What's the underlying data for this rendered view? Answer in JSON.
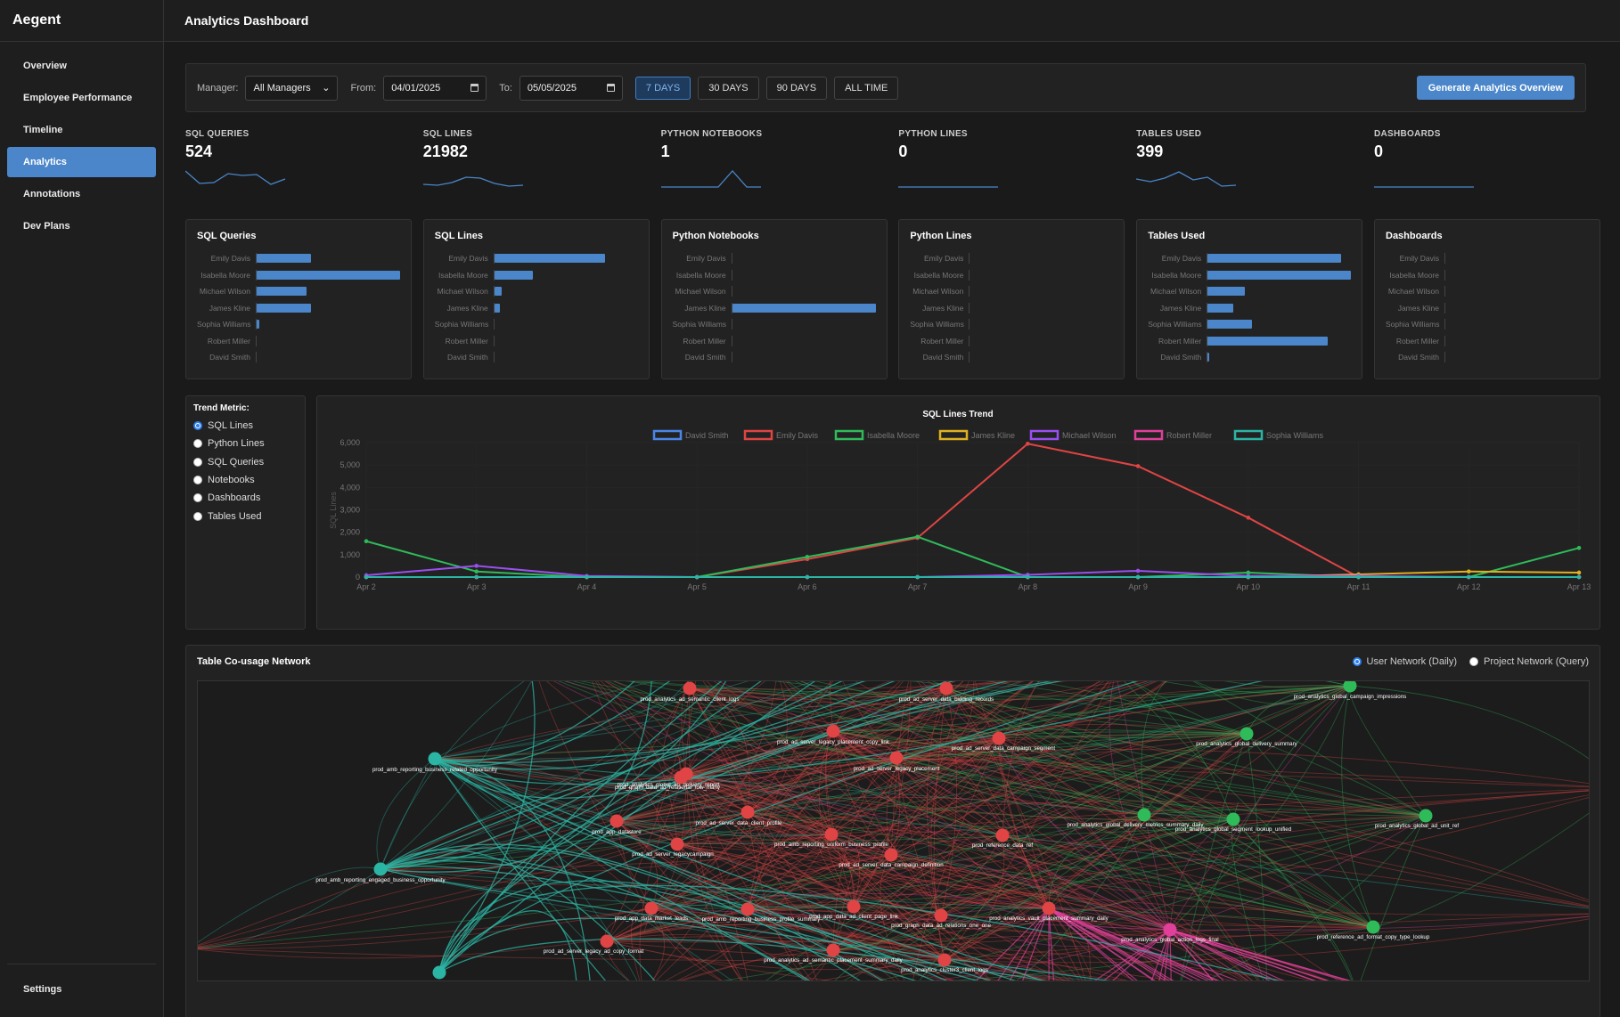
{
  "app": {
    "brand": "Aegent",
    "page_title": "Analytics Dashboard"
  },
  "sidebar": {
    "items": [
      {
        "label": "Overview",
        "active": false
      },
      {
        "label": "Employee Performance",
        "active": false
      },
      {
        "label": "Timeline",
        "active": false
      },
      {
        "label": "Analytics",
        "active": true
      },
      {
        "label": "Annotations",
        "active": false
      },
      {
        "label": "Dev Plans",
        "active": false
      }
    ],
    "settings_label": "Settings"
  },
  "filters": {
    "manager_label": "Manager:",
    "manager_value": "All Managers",
    "from_label": "From:",
    "from_value": "04/01/2025",
    "to_label": "To:",
    "to_value": "05/05/2025",
    "ranges": [
      "7 DAYS",
      "30 DAYS",
      "90 DAYS",
      "ALL TIME"
    ],
    "active_range": "7 DAYS",
    "generate_label": "Generate Analytics Overview"
  },
  "kpis": [
    {
      "label": "SQL QUERIES",
      "value": "524",
      "spark": [
        0.9,
        0.2,
        0.25,
        0.75,
        0.65,
        0.7,
        0.15,
        0.45
      ]
    },
    {
      "label": "SQL LINES",
      "value": "21982",
      "spark": [
        0.15,
        0.1,
        0.25,
        0.55,
        0.5,
        0.2,
        0.05,
        0.1
      ]
    },
    {
      "label": "PYTHON NOTEBOOKS",
      "value": "1",
      "spark": [
        0,
        0,
        0,
        0,
        0,
        0.9,
        0,
        0
      ]
    },
    {
      "label": "PYTHON LINES",
      "value": "0",
      "spark": [
        0,
        0,
        0,
        0,
        0,
        0,
        0,
        0
      ]
    },
    {
      "label": "TABLES USED",
      "value": "399",
      "spark": [
        0.45,
        0.3,
        0.5,
        0.85,
        0.4,
        0.55,
        0.05,
        0.1
      ]
    },
    {
      "label": "DASHBOARDS",
      "value": "0",
      "spark": [
        0,
        0,
        0,
        0,
        0,
        0,
        0,
        0
      ]
    }
  ],
  "bar_cards": [
    {
      "title": "SQL Queries",
      "max": 100,
      "rows": [
        {
          "name": "Emily Davis",
          "value": 38
        },
        {
          "name": "Isabella Moore",
          "value": 100
        },
        {
          "name": "Michael Wilson",
          "value": 35
        },
        {
          "name": "James Kline",
          "value": 38
        },
        {
          "name": "Sophia Williams",
          "value": 2
        },
        {
          "name": "Robert Miller",
          "value": 0
        },
        {
          "name": "David Smith",
          "value": 0
        }
      ]
    },
    {
      "title": "SQL Lines",
      "max": 100,
      "rows": [
        {
          "name": "Emily Davis",
          "value": 77
        },
        {
          "name": "Isabella Moore",
          "value": 27
        },
        {
          "name": "Michael Wilson",
          "value": 5
        },
        {
          "name": "James Kline",
          "value": 4
        },
        {
          "name": "Sophia Williams",
          "value": 0
        },
        {
          "name": "Robert Miller",
          "value": 0
        },
        {
          "name": "David Smith",
          "value": 0
        }
      ]
    },
    {
      "title": "Python Notebooks",
      "max": 100,
      "rows": [
        {
          "name": "Emily Davis",
          "value": 0
        },
        {
          "name": "Isabella Moore",
          "value": 0
        },
        {
          "name": "Michael Wilson",
          "value": 0
        },
        {
          "name": "James Kline",
          "value": 100
        },
        {
          "name": "Sophia Williams",
          "value": 0
        },
        {
          "name": "Robert Miller",
          "value": 0
        },
        {
          "name": "David Smith",
          "value": 0
        }
      ]
    },
    {
      "title": "Python Lines",
      "max": 100,
      "rows": [
        {
          "name": "Emily Davis",
          "value": 0
        },
        {
          "name": "Isabella Moore",
          "value": 0
        },
        {
          "name": "Michael Wilson",
          "value": 0
        },
        {
          "name": "James Kline",
          "value": 0
        },
        {
          "name": "Sophia Williams",
          "value": 0
        },
        {
          "name": "Robert Miller",
          "value": 0
        },
        {
          "name": "David Smith",
          "value": 0
        }
      ]
    },
    {
      "title": "Tables Used",
      "max": 100,
      "rows": [
        {
          "name": "Emily Davis",
          "value": 93
        },
        {
          "name": "Isabella Moore",
          "value": 100
        },
        {
          "name": "Michael Wilson",
          "value": 26
        },
        {
          "name": "James Kline",
          "value": 18
        },
        {
          "name": "Sophia Williams",
          "value": 31
        },
        {
          "name": "Robert Miller",
          "value": 84
        },
        {
          "name": "David Smith",
          "value": 1
        }
      ]
    },
    {
      "title": "Dashboards",
      "max": 100,
      "rows": [
        {
          "name": "Emily Davis",
          "value": 0
        },
        {
          "name": "Isabella Moore",
          "value": 0
        },
        {
          "name": "Michael Wilson",
          "value": 0
        },
        {
          "name": "James Kline",
          "value": 0
        },
        {
          "name": "Sophia Williams",
          "value": 0
        },
        {
          "name": "Robert Miller",
          "value": 0
        },
        {
          "name": "David Smith",
          "value": 0
        }
      ]
    }
  ],
  "trend_metric": {
    "title": "Trend Metric:",
    "options": [
      "SQL Lines",
      "Python Lines",
      "SQL Queries",
      "Notebooks",
      "Dashboards",
      "Tables Used"
    ],
    "selected": "SQL Lines"
  },
  "network": {
    "title": "Table Co-usage Network",
    "modes": [
      "User Network (Daily)",
      "Project Network (Query)"
    ],
    "selected_mode": "User Network (Daily)",
    "colors": {
      "teal": "#2bb5a4",
      "red": "#e04444",
      "green": "#2fbb5a",
      "pink": "#e0409a"
    },
    "nodes": [
      {
        "label": "prod_analytics_ad_semantic_client_logs",
        "group": "red"
      },
      {
        "label": "prod_ad_server_data_bidding_records",
        "group": "red"
      },
      {
        "label": "prod_analytics_global_campaign_impressions",
        "group": "green"
      },
      {
        "label": "prod_ad_server_legacy_placement_copy_link",
        "group": "red"
      },
      {
        "label": "prod_analytics_global_ad_delivery_report",
        "group": "red"
      },
      {
        "label": "prod_ad_server_legacy_placement",
        "group": "red"
      },
      {
        "label": "prod_ad_server_data_campaign_segment",
        "group": "red"
      },
      {
        "label": "prod_analytics_global_delivery_summary",
        "group": "green"
      },
      {
        "label": "prod_amb_reporting_business_related_opportunity",
        "group": "teal"
      },
      {
        "label": "prod_graph_data_ad_relational_row_many",
        "group": "red"
      },
      {
        "label": "prod_ad_server_data_client_profile",
        "group": "red"
      },
      {
        "label": "prod_app_datastore",
        "group": "red"
      },
      {
        "label": "prod_analytics_global_delivery_metrics_summary_daily",
        "group": "green"
      },
      {
        "label": "prod_analytics_global_segment_lookup_unified",
        "group": "green"
      },
      {
        "label": "prod_analytics_global_ad_unit_ref",
        "group": "green"
      },
      {
        "label": "prod_amb_reporting_uniform_business_profile",
        "group": "red"
      },
      {
        "label": "prod_reference_data_ref",
        "group": "red"
      },
      {
        "label": "prod_ad_server_legacycampaign",
        "group": "red"
      },
      {
        "label": "prod_ad_server_data_campaign_definition",
        "group": "red"
      },
      {
        "label": "prod_amb_reporting_engaged_business_opportunity",
        "group": "teal"
      },
      {
        "label": "prod_app_data_market_leads",
        "group": "red"
      },
      {
        "label": "prod_amb_reporting_business_profile_summary",
        "group": "red"
      },
      {
        "label": "prod_app_data_ad_client_page_link",
        "group": "red"
      },
      {
        "label": "prod_analytics_vault_placement_summary_daily",
        "group": "red"
      },
      {
        "label": "prod_graph_data_ad_relations_one_one",
        "group": "red"
      },
      {
        "label": "prod_analytics_global_action_logs_final",
        "group": "pink"
      },
      {
        "label": "prod_reference_ad_format_copy_type_lookup",
        "group": "green"
      },
      {
        "label": "prod_ad_server_legacy_ad_copy_format",
        "group": "red"
      },
      {
        "label": "prod_analytics_ad_semantic_placement_summary_daily",
        "group": "red"
      },
      {
        "label": "prod_analytics_cluster3_client_logs",
        "group": "red"
      }
    ]
  },
  "chart_data": {
    "type": "line",
    "title": "SQL Lines Trend",
    "xlabel": "",
    "ylabel": "SQL Lines",
    "categories": [
      "Apr 2",
      "Apr 3",
      "Apr 4",
      "Apr 5",
      "Apr 6",
      "Apr 7",
      "Apr 8",
      "Apr 9",
      "Apr 10",
      "Apr 11",
      "Apr 12",
      "Apr 13"
    ],
    "ylim": [
      0,
      6000
    ],
    "yticks": [
      0,
      1000,
      2000,
      3000,
      4000,
      5000,
      6000
    ],
    "ytick_labels": [
      "0",
      "1,000",
      "2,000",
      "3,000",
      "4,000",
      "5,000",
      "6,000"
    ],
    "series": [
      {
        "name": "David Smith",
        "color": "#4a86e8",
        "values": [
          0,
          0,
          0,
          0,
          0,
          0,
          0,
          0,
          0,
          0,
          0,
          0
        ]
      },
      {
        "name": "Emily Davis",
        "color": "#e04444",
        "values": [
          0,
          0,
          0,
          0,
          800,
          1750,
          5950,
          4950,
          2650,
          0,
          0,
          0
        ]
      },
      {
        "name": "Isabella Moore",
        "color": "#2fbb5a",
        "values": [
          1600,
          250,
          0,
          0,
          900,
          1800,
          0,
          0,
          200,
          0,
          0,
          1300
        ]
      },
      {
        "name": "James Kline",
        "color": "#e0b020",
        "values": [
          0,
          0,
          0,
          0,
          0,
          0,
          0,
          0,
          0,
          120,
          250,
          200
        ]
      },
      {
        "name": "Michael Wilson",
        "color": "#9a4ff0",
        "values": [
          80,
          500,
          50,
          0,
          0,
          0,
          100,
          280,
          50,
          50,
          0,
          0
        ]
      },
      {
        "name": "Robert Miller",
        "color": "#e0409a",
        "values": [
          0,
          0,
          0,
          0,
          0,
          0,
          0,
          0,
          0,
          0,
          0,
          0
        ]
      },
      {
        "name": "Sophia Williams",
        "color": "#2bb5a4",
        "values": [
          0,
          0,
          0,
          0,
          0,
          0,
          0,
          0,
          0,
          0,
          0,
          0
        ]
      }
    ]
  }
}
